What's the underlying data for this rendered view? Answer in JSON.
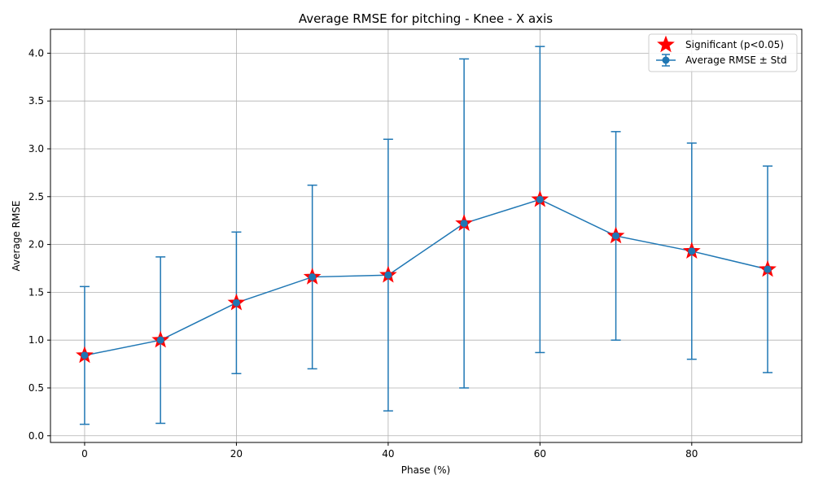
{
  "chart_data": {
    "type": "line",
    "title": "Average RMSE for pitching - Knee - X axis",
    "xlabel": "Phase (%)",
    "ylabel": "Average RMSE",
    "xlim": [
      -4.5,
      94.5
    ],
    "ylim": [
      -0.07,
      4.25
    ],
    "xticks": [
      0,
      20,
      40,
      60,
      80
    ],
    "yticks": [
      0.0,
      0.5,
      1.0,
      1.5,
      2.0,
      2.5,
      3.0,
      3.5,
      4.0
    ],
    "grid": true,
    "legend_position": "top-right",
    "x": [
      0,
      10,
      20,
      30,
      40,
      50,
      60,
      70,
      80,
      90
    ],
    "series": [
      {
        "name": "Average RMSE ± Std",
        "color": "#1f77b4",
        "values": [
          0.84,
          1.0,
          1.39,
          1.66,
          1.68,
          2.22,
          2.47,
          2.09,
          1.93,
          1.74
        ],
        "std": [
          0.72,
          0.87,
          0.74,
          0.96,
          1.42,
          1.72,
          1.6,
          1.09,
          1.13,
          1.08
        ]
      }
    ],
    "significant": {
      "name": "Significant (p<0.05)",
      "color": "#ff0000",
      "x": [
        0,
        10,
        20,
        30,
        40,
        50,
        60,
        70,
        80,
        90
      ]
    }
  }
}
